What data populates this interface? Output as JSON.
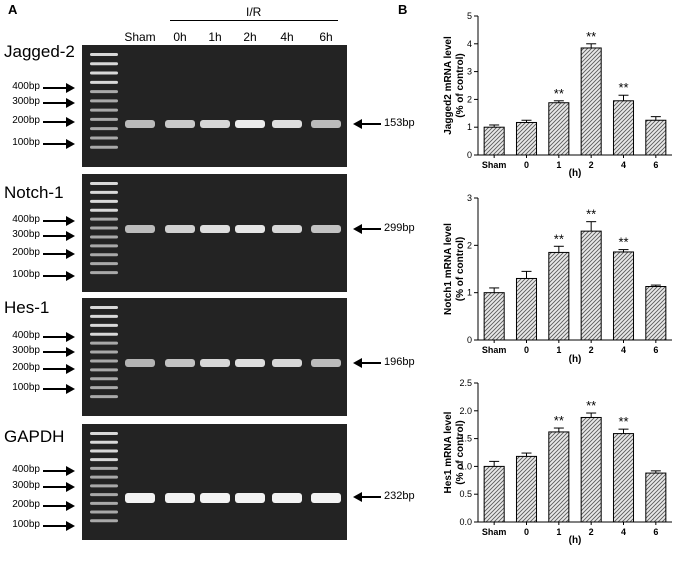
{
  "panel_a": {
    "letter": "A",
    "header_group": "I/R",
    "lanes": [
      "Sham",
      "0h",
      "1h",
      "2h",
      "4h",
      "6h"
    ],
    "gels": [
      {
        "title": "Jagged-2",
        "markers": [
          "400bp",
          "300bp",
          "200bp",
          "100bp"
        ],
        "band_label": "153bp",
        "band_intensity": [
          0.55,
          0.65,
          0.75,
          0.9,
          0.8,
          0.55
        ]
      },
      {
        "title": "Notch-1",
        "markers": [
          "400bp",
          "300bp",
          "200bp",
          "100bp"
        ],
        "band_label": "299bp",
        "band_intensity": [
          0.55,
          0.7,
          0.8,
          0.85,
          0.75,
          0.6
        ]
      },
      {
        "title": "Hes-1",
        "markers": [
          "400bp",
          "300bp",
          "200bp",
          "100bp"
        ],
        "band_label": "196bp",
        "band_intensity": [
          0.5,
          0.6,
          0.75,
          0.8,
          0.75,
          0.55
        ]
      },
      {
        "title": "GAPDH",
        "markers": [
          "400bp",
          "300bp",
          "200bp",
          "100bp"
        ],
        "band_label": "232bp",
        "band_intensity": [
          0.95,
          0.95,
          0.95,
          0.95,
          0.95,
          0.95
        ]
      }
    ]
  },
  "panel_b": {
    "letter": "B"
  },
  "chart_data": [
    {
      "type": "bar",
      "categories": [
        "Sham",
        "0",
        "1",
        "2",
        "4",
        "6"
      ],
      "values": [
        1.0,
        1.17,
        1.88,
        3.85,
        1.95,
        1.25
      ],
      "errors": [
        0.08,
        0.08,
        0.07,
        0.15,
        0.2,
        0.13
      ],
      "significance": [
        "",
        "",
        "**",
        "**",
        "**",
        ""
      ],
      "ylabel": "Jagged2 mRNA level",
      "ylabel2": "(% of control)",
      "xlabel": "(h)",
      "ylim": [
        0,
        5
      ],
      "yticks": [
        0,
        1,
        2,
        3,
        4,
        5
      ]
    },
    {
      "type": "bar",
      "categories": [
        "Sham",
        "0",
        "1",
        "2",
        "4",
        "6"
      ],
      "values": [
        1.0,
        1.3,
        1.85,
        2.3,
        1.86,
        1.13
      ],
      "errors": [
        0.1,
        0.15,
        0.13,
        0.2,
        0.05,
        0.03
      ],
      "significance": [
        "",
        "",
        "**",
        "**",
        "**",
        ""
      ],
      "ylabel": "Notch1 mRNA level",
      "ylabel2": "(% of control)",
      "xlabel": "(h)",
      "ylim": [
        0,
        3
      ],
      "yticks": [
        0,
        1,
        2,
        3
      ]
    },
    {
      "type": "bar",
      "categories": [
        "Sham",
        "0",
        "1",
        "2",
        "4",
        "6"
      ],
      "values": [
        1.0,
        1.18,
        1.62,
        1.88,
        1.59,
        0.88
      ],
      "errors": [
        0.09,
        0.06,
        0.07,
        0.08,
        0.08,
        0.04
      ],
      "significance": [
        "",
        "",
        "**",
        "**",
        "**",
        ""
      ],
      "ylabel": "Hes1 mRNA level",
      "ylabel2": "(% of control)",
      "xlabel": "(h)",
      "ylim": [
        0,
        2.5
      ],
      "yticks": [
        0.0,
        0.5,
        1.0,
        1.5,
        2.0,
        2.5
      ]
    }
  ]
}
